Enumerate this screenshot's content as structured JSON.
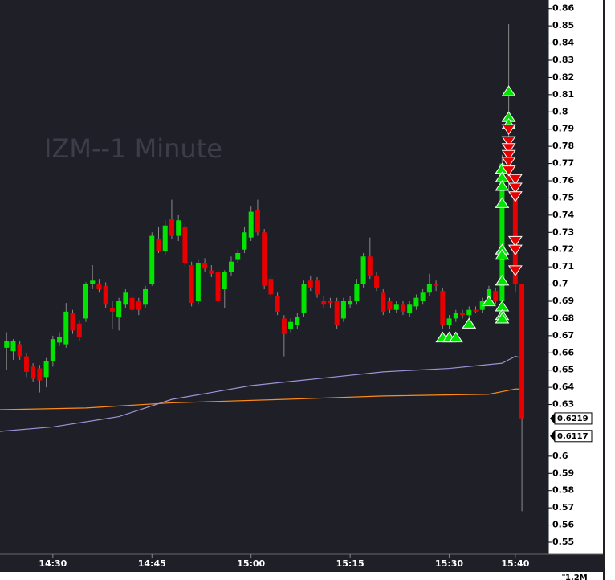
{
  "chart_data": {
    "type": "candlestick",
    "title": "IZM--1 Minute",
    "up_color": "#00e400",
    "down_color": "#e80000",
    "xlim": [
      "14:22",
      "15:45"
    ],
    "xticks": [
      "14:30",
      "14:45",
      "15:00",
      "15:15",
      "15:30",
      "15:40"
    ],
    "ylim": [
      0.543,
      0.865
    ],
    "yticks": [
      0.86,
      0.85,
      0.84,
      0.83,
      0.82,
      0.81,
      0.8,
      0.79,
      0.78,
      0.77,
      0.76,
      0.75,
      0.74,
      0.73,
      0.72,
      0.71,
      0.7,
      0.69,
      0.68,
      0.67,
      0.66,
      0.65,
      0.64,
      0.63,
      0.6,
      0.59,
      0.58,
      0.57,
      0.56,
      0.55
    ],
    "price_tags": [
      0.6219,
      0.6117
    ],
    "volume_ticks": [
      {
        "value": 1200000,
        "label": "1.2M"
      }
    ],
    "x": [
      "14:23",
      "14:24",
      "14:25",
      "14:26",
      "14:27",
      "14:28",
      "14:29",
      "14:30",
      "14:31",
      "14:32",
      "14:33",
      "14:34",
      "14:35",
      "14:36",
      "14:37",
      "14:38",
      "14:39",
      "14:40",
      "14:41",
      "14:42",
      "14:43",
      "14:44",
      "14:45",
      "14:46",
      "14:47",
      "14:48",
      "14:49",
      "14:50",
      "14:51",
      "14:52",
      "14:53",
      "14:54",
      "14:55",
      "14:56",
      "14:57",
      "14:58",
      "14:59",
      "15:00",
      "15:01",
      "15:02",
      "15:03",
      "15:04",
      "15:05",
      "15:06",
      "15:07",
      "15:08",
      "15:09",
      "15:10",
      "15:11",
      "15:12",
      "15:13",
      "15:14",
      "15:15",
      "15:16",
      "15:17",
      "15:18",
      "15:19",
      "15:20",
      "15:21",
      "15:22",
      "15:23",
      "15:24",
      "15:25",
      "15:26",
      "15:27",
      "15:28",
      "15:29",
      "15:30",
      "15:31",
      "15:32",
      "15:33",
      "15:34",
      "15:35",
      "15:36",
      "15:37",
      "15:38",
      "15:39",
      "15:40",
      "15:41"
    ],
    "open": [
      0.663,
      0.661,
      0.665,
      0.658,
      0.652,
      0.651,
      0.646,
      0.655,
      0.666,
      0.665,
      0.683,
      0.677,
      0.68,
      0.7,
      0.7,
      0.699,
      0.686,
      0.681,
      0.688,
      0.692,
      0.69,
      0.688,
      0.7,
      0.726,
      0.719,
      0.738,
      0.728,
      0.733,
      0.711,
      0.69,
      0.712,
      0.708,
      0.707,
      0.697,
      0.707,
      0.714,
      0.72,
      0.727,
      0.743,
      0.73,
      0.703,
      0.693,
      0.68,
      0.674,
      0.676,
      0.683,
      0.702,
      0.702,
      0.69,
      0.69,
      0.69,
      0.68,
      0.688,
      0.69,
      0.7,
      0.716,
      0.705,
      0.695,
      0.69,
      0.685,
      0.688,
      0.683,
      0.687,
      0.69,
      0.695,
      0.7,
      0.696,
      0.676,
      0.68,
      0.683,
      0.682,
      0.685,
      0.685,
      0.69,
      0.696,
      0.69,
      0.77,
      0.755,
      0.7
    ],
    "high": [
      0.672,
      0.668,
      0.667,
      0.66,
      0.654,
      0.653,
      0.657,
      0.67,
      0.672,
      0.689,
      0.685,
      0.679,
      0.701,
      0.711,
      0.703,
      0.701,
      0.69,
      0.692,
      0.697,
      0.694,
      0.692,
      0.699,
      0.73,
      0.733,
      0.737,
      0.749,
      0.74,
      0.735,
      0.713,
      0.714,
      0.715,
      0.711,
      0.709,
      0.708,
      0.716,
      0.72,
      0.733,
      0.745,
      0.749,
      0.732,
      0.705,
      0.695,
      0.682,
      0.68,
      0.683,
      0.702,
      0.705,
      0.704,
      0.693,
      0.692,
      0.692,
      0.692,
      0.693,
      0.703,
      0.718,
      0.727,
      0.707,
      0.697,
      0.692,
      0.69,
      0.69,
      0.69,
      0.694,
      0.697,
      0.706,
      0.702,
      0.698,
      0.682,
      0.685,
      0.685,
      0.687,
      0.687,
      0.692,
      0.699,
      0.698,
      0.775,
      0.851,
      0.76,
      0.7
    ],
    "low": [
      0.65,
      0.656,
      0.656,
      0.646,
      0.643,
      0.637,
      0.64,
      0.652,
      0.664,
      0.663,
      0.671,
      0.667,
      0.678,
      0.697,
      0.695,
      0.686,
      0.674,
      0.673,
      0.686,
      0.683,
      0.682,
      0.686,
      0.699,
      0.718,
      0.717,
      0.726,
      0.725,
      0.71,
      0.687,
      0.688,
      0.707,
      0.704,
      0.688,
      0.686,
      0.705,
      0.712,
      0.718,
      0.725,
      0.728,
      0.697,
      0.692,
      0.682,
      0.658,
      0.672,
      0.674,
      0.681,
      0.696,
      0.692,
      0.686,
      0.686,
      0.674,
      0.678,
      0.686,
      0.688,
      0.698,
      0.703,
      0.696,
      0.682,
      0.683,
      0.683,
      0.682,
      0.681,
      0.685,
      0.688,
      0.693,
      0.696,
      0.674,
      0.674,
      0.678,
      0.68,
      0.68,
      0.683,
      0.683,
      0.688,
      0.688,
      0.682,
      0.755,
      0.695,
      0.568
    ],
    "close": [
      0.667,
      0.667,
      0.658,
      0.649,
      0.645,
      0.644,
      0.655,
      0.668,
      0.669,
      0.684,
      0.673,
      0.669,
      0.7,
      0.702,
      0.697,
      0.688,
      0.684,
      0.69,
      0.695,
      0.685,
      0.685,
      0.697,
      0.728,
      0.719,
      0.734,
      0.728,
      0.737,
      0.712,
      0.689,
      0.712,
      0.709,
      0.706,
      0.69,
      0.707,
      0.713,
      0.718,
      0.73,
      0.742,
      0.73,
      0.699,
      0.694,
      0.684,
      0.671,
      0.678,
      0.681,
      0.7,
      0.698,
      0.694,
      0.688,
      0.689,
      0.676,
      0.69,
      0.69,
      0.7,
      0.716,
      0.705,
      0.698,
      0.684,
      0.685,
      0.688,
      0.684,
      0.688,
      0.692,
      0.695,
      0.7,
      0.699,
      0.676,
      0.68,
      0.683,
      0.682,
      0.685,
      0.684,
      0.69,
      0.697,
      0.69,
      0.77,
      0.76,
      0.7,
      0.622
    ],
    "series": [
      {
        "color": "#9a94d8",
        "x": [
          "14:22",
          "14:30",
          "14:40",
          "14:48",
          "15:00",
          "15:10",
          "15:20",
          "15:30",
          "15:38",
          "15:40",
          "15:41"
        ],
        "values": [
          0.6144,
          0.617,
          0.623,
          0.633,
          0.641,
          0.645,
          0.649,
          0.651,
          0.654,
          0.658,
          0.657
        ]
      },
      {
        "color": "#ff8c1a",
        "x": [
          "14:22",
          "14:35",
          "14:48",
          "15:05",
          "15:20",
          "15:36",
          "15:40",
          "15:41"
        ],
        "values": [
          0.627,
          0.628,
          0.631,
          0.633,
          0.635,
          0.636,
          0.639,
          0.639
        ]
      }
    ],
    "buy_signals": {
      "color": "#00e400",
      "x": [
        "15:29",
        "15:30",
        "15:31",
        "15:33",
        "15:36",
        "15:38",
        "15:38",
        "15:38",
        "15:38",
        "15:38",
        "15:38",
        "15:38",
        "15:38",
        "15:38",
        "15:38",
        "15:39",
        "15:39",
        "15:39"
      ],
      "values": [
        0.672,
        0.672,
        0.672,
        0.68,
        0.693,
        0.77,
        0.765,
        0.76,
        0.75,
        0.723,
        0.72,
        0.705,
        0.69,
        0.685,
        0.683,
        0.815,
        0.8,
        0.796
      ]
    },
    "sell_signals": {
      "color": "#e80000",
      "x": [
        "15:39",
        "15:39",
        "15:39",
        "15:39",
        "15:39",
        "15:39",
        "15:40",
        "15:40",
        "15:40",
        "15:40",
        "15:40",
        "15:40"
      ],
      "values": [
        0.787,
        0.78,
        0.776,
        0.772,
        0.768,
        0.763,
        0.758,
        0.753,
        0.748,
        0.722,
        0.717,
        0.705
      ]
    }
  }
}
